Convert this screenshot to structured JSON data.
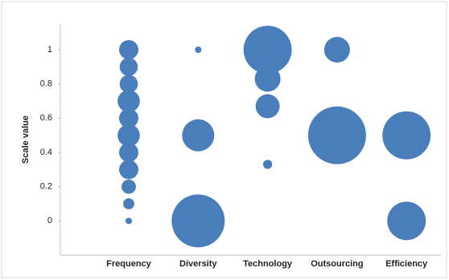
{
  "chart_data": {
    "type": "bubble",
    "y_label": "Scale value",
    "categories": [
      "Frequency",
      "Diversity",
      "Technology",
      "Outsourcing",
      "Efficiency"
    ],
    "data": [
      {
        "y": [
          1,
          0.9,
          0.8,
          0.7,
          0.6,
          0.5,
          0.4,
          0.3,
          0.2,
          0.1,
          0
        ],
        "size": [
          9,
          8,
          8,
          12,
          9,
          12,
          9,
          9,
          5,
          3,
          1
        ]
      },
      {
        "y": [
          1,
          0.5,
          0
        ],
        "size": [
          1,
          25,
          68
        ]
      },
      {
        "y": [
          1,
          0.83,
          0.67,
          0.33
        ],
        "size": [
          56,
          16,
          14,
          2
        ]
      },
      {
        "y": [
          1,
          0.5
        ],
        "size": [
          16,
          81
        ]
      },
      {
        "y": [
          0.5,
          0
        ],
        "size": [
          56,
          36
        ]
      }
    ],
    "color": "#4a7ebb",
    "ylim": [
      -0.2,
      1.15
    ],
    "yticks": [
      0,
      0.2,
      0.4,
      0.6,
      0.8,
      1
    ],
    "grid": false
  }
}
